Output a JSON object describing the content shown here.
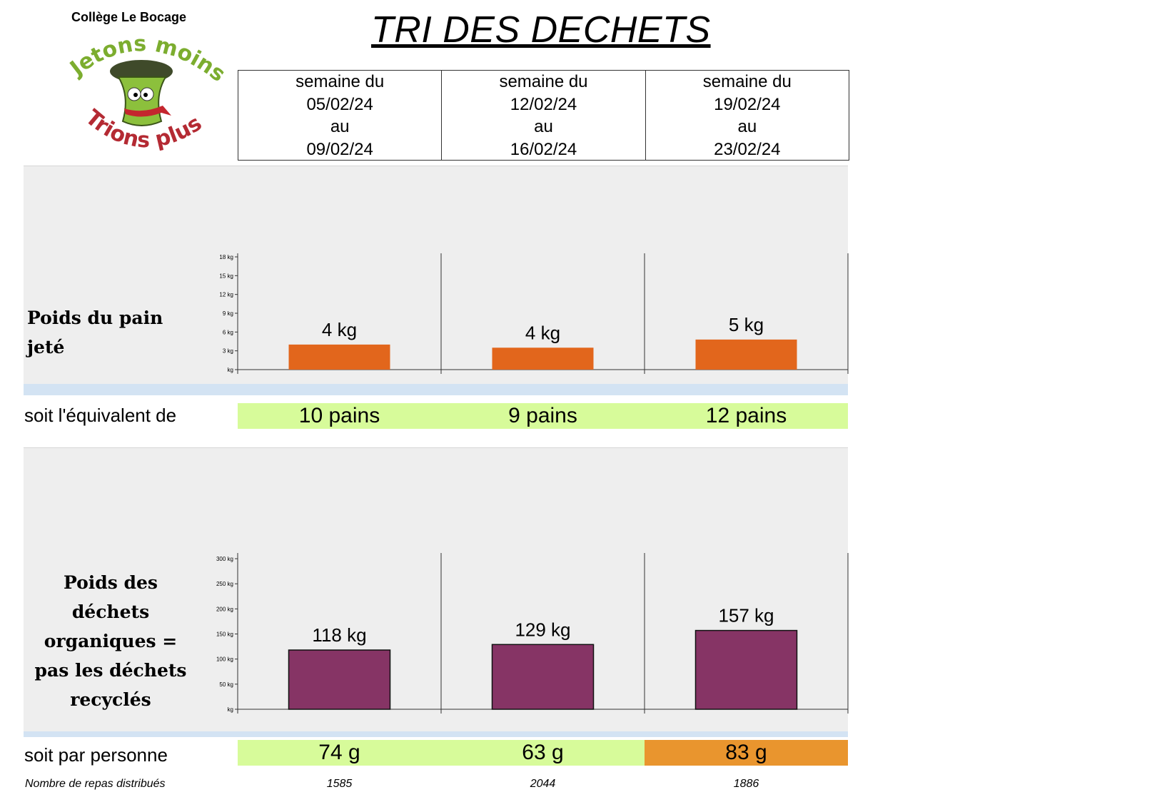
{
  "header": {
    "school": "Collège Le Bocage",
    "title": "TRI DES DECHETS",
    "logo_top_text": "Jetons moins",
    "logo_bottom_text": "Trions plus"
  },
  "weeks": [
    {
      "line1": "semaine du",
      "start": "05/02/24",
      "line3": "au",
      "end": "09/02/24"
    },
    {
      "line1": "semaine du",
      "start": "12/02/24",
      "line3": "au",
      "end": "16/02/24"
    },
    {
      "line1": "semaine du",
      "start": "19/02/24",
      "line3": "au",
      "end": "23/02/24"
    }
  ],
  "bread_section": {
    "title": "Poids du pain jeté",
    "equivalent_label": "soit l'équivalent de",
    "equivalents": [
      "10 pains",
      "9 pains",
      "12 pains"
    ],
    "equivalent_colors": [
      "#d7fb9a",
      "#d7fb9a",
      "#d7fb9a"
    ]
  },
  "organic_section": {
    "title": "Poids des déchets organiques = pas les déchets recyclés",
    "per_person_label": "soit par personne",
    "per_person": [
      "74 g",
      "63 g",
      "83 g"
    ],
    "per_person_colors": [
      "#d7fb9a",
      "#d7fb9a",
      "#e9952e"
    ],
    "meals_label": "Nombre de repas distribués",
    "meals": [
      "1585",
      "2044",
      "1886"
    ]
  },
  "chart_data": [
    {
      "type": "bar",
      "categories": [
        "05/02/24 - 09/02/24",
        "12/02/24 - 16/02/24",
        "19/02/24 - 23/02/24"
      ],
      "values": [
        4,
        4,
        5
      ],
      "bar_values_estimated": [
        4.0,
        3.5,
        4.8
      ],
      "data_labels": [
        "4 kg",
        "4 kg",
        "5 kg"
      ],
      "ylim": [
        0,
        18
      ],
      "yticks": [
        "kg",
        "3 kg",
        "6 kg",
        "9 kg",
        "12 kg",
        "15 kg",
        "18 kg"
      ],
      "color": "#e2661c",
      "grid": false
    },
    {
      "type": "bar",
      "categories": [
        "05/02/24 - 09/02/24",
        "12/02/24 - 16/02/24",
        "19/02/24 - 23/02/24"
      ],
      "values": [
        118,
        129,
        157
      ],
      "data_labels": [
        "118 kg",
        "129 kg",
        "157 kg"
      ],
      "ylim": [
        0,
        300
      ],
      "yticks": [
        "kg",
        "50 kg",
        "100 kg",
        "150 kg",
        "200 kg",
        "250 kg",
        "300 kg"
      ],
      "color": "#863465",
      "grid": false
    }
  ]
}
